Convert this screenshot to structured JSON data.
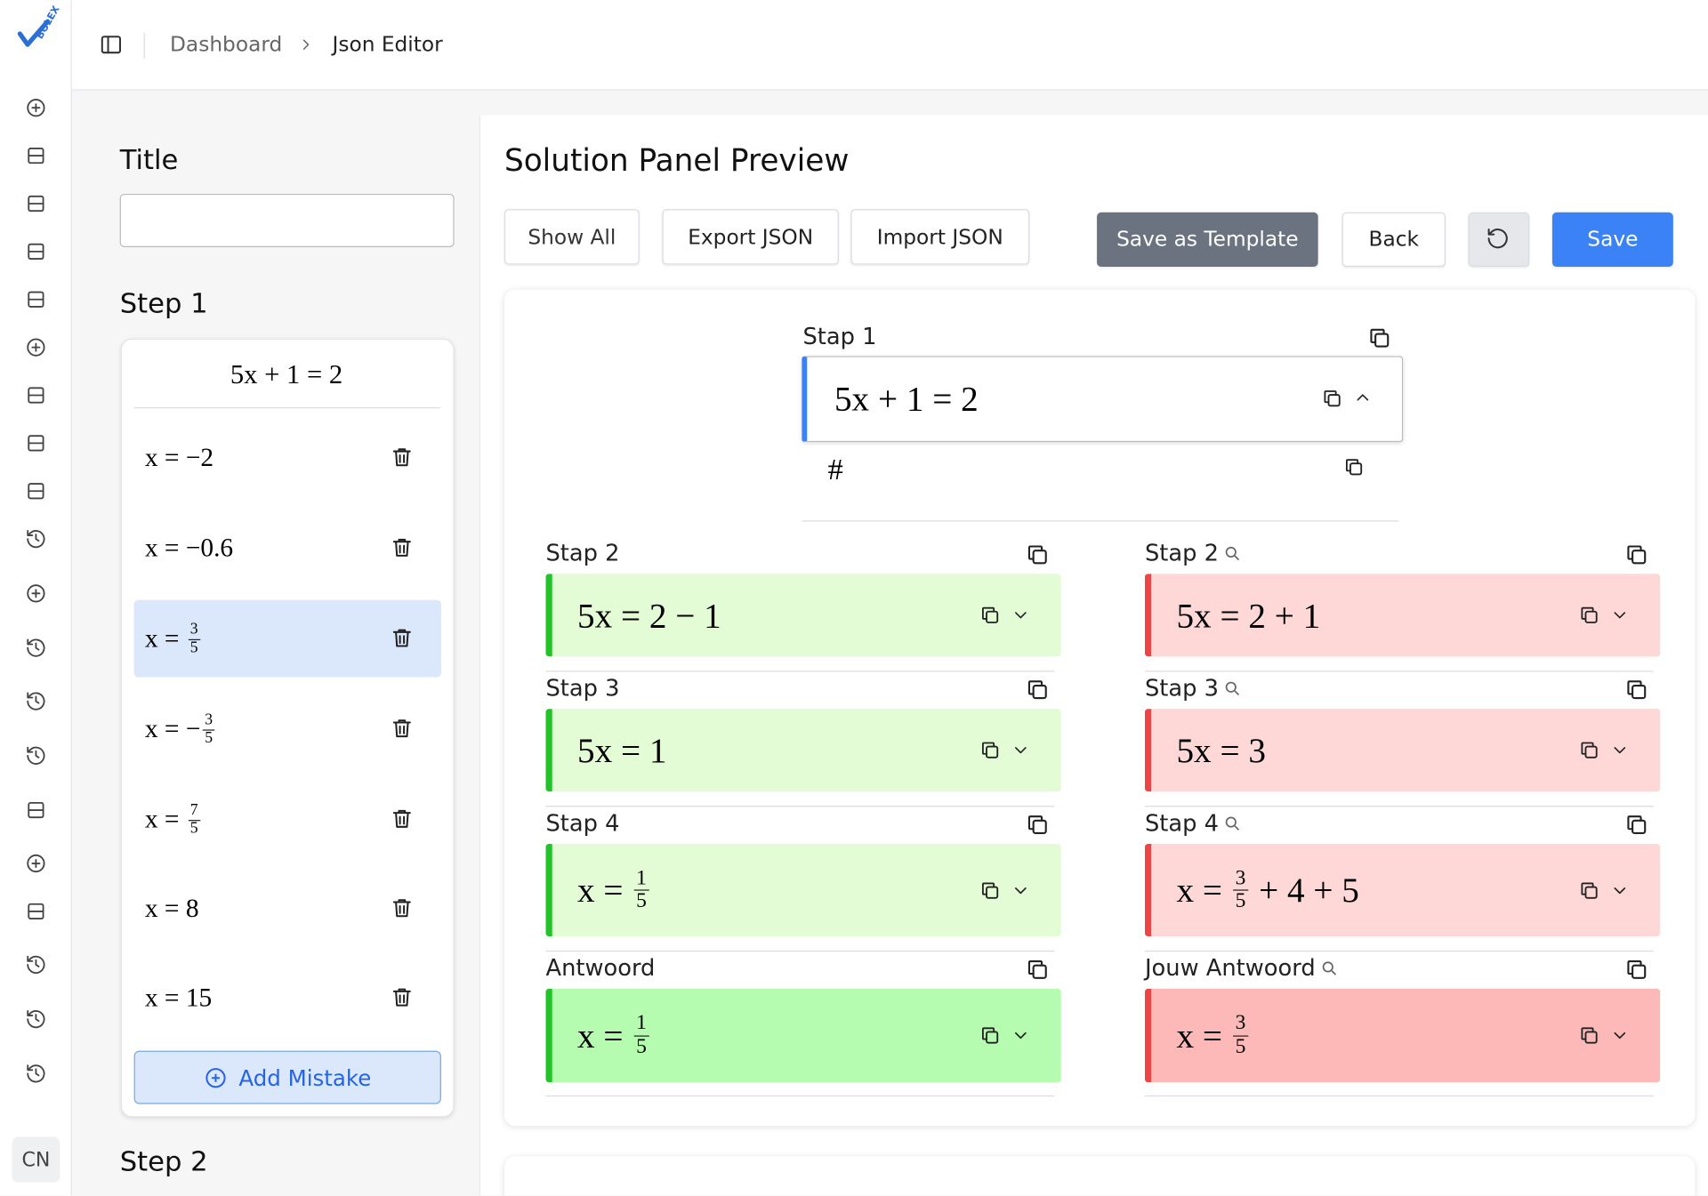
{
  "sidebar": {
    "logo": "BOLEX",
    "language": "CN"
  },
  "breadcrumb": [
    "Dashboard",
    "Json Editor"
  ],
  "editor": {
    "title_label": "Title",
    "steps": [
      {
        "label": "Step 1",
        "equation": [
          "5x + 1 = 2"
        ],
        "mistakes": [
          [
            "x = −2"
          ],
          [
            "x = −0.6"
          ],
          [
            "x = ",
            {
              "num": "3",
              "den": "5"
            }
          ],
          [
            "x = −",
            {
              "num": "3",
              "den": "5"
            }
          ],
          [
            "x = ",
            {
              "num": "7",
              "den": "5"
            }
          ],
          [
            "x = 8"
          ],
          [
            "x = 15"
          ]
        ],
        "add_button": "Add Mistake"
      },
      {
        "label": "Step 2"
      }
    ]
  },
  "preview": {
    "title": "Solution Panel Preview",
    "buttons": [
      "Show All",
      "Export JSON",
      "Import JSON",
      "Save as Template",
      "Back",
      "Save"
    ],
    "first_step": {
      "label": "Stap 1",
      "math": [
        "5x + 1 = 2"
      ],
      "hash": "#"
    },
    "correct": [
      {
        "label": "Stap 2",
        "math": [
          "5x = 2 − 1"
        ]
      },
      {
        "label": "Stap 3",
        "math": [
          "5x = 1"
        ]
      },
      {
        "label": "Stap 4",
        "math": [
          "x = ",
          {
            "num": "1",
            "den": "5"
          }
        ]
      },
      {
        "label": "Antwoord",
        "math": [
          "x = ",
          {
            "num": "1",
            "den": "5"
          }
        ]
      }
    ],
    "student": [
      {
        "label": "Stap 2",
        "math": [
          "5x = 2 + 1"
        ]
      },
      {
        "label": "Stap 3",
        "math": [
          "5x = 3"
        ]
      },
      {
        "label": "Stap 4",
        "math": [
          "x = ",
          {
            "num": "3",
            "den": "5"
          },
          " + 4 + 5"
        ]
      },
      {
        "label": "Jouw Antwoord",
        "math": [
          "x = ",
          {
            "num": "3",
            "den": "5"
          }
        ]
      }
    ]
  }
}
